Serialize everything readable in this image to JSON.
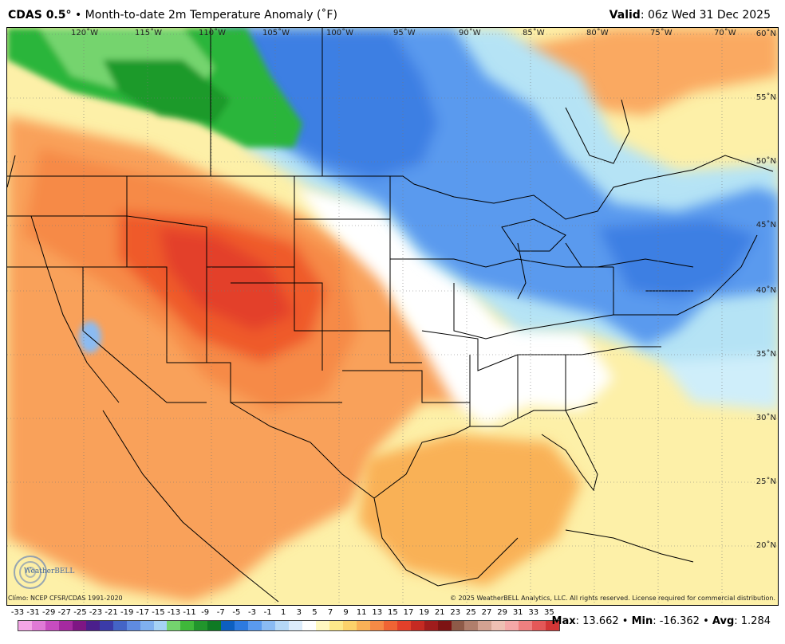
{
  "header": {
    "model": "CDAS 0.5",
    "degree": "°",
    "bullet": "•",
    "product": "Month-to-date 2m Temperature Anomaly (˚F)",
    "valid_label": "Valid",
    "valid_value": ": 06z Wed 31 Dec 2025"
  },
  "map": {
    "lon_labels": [
      "120˚W",
      "115˚W",
      "110˚W",
      "105˚W",
      "100˚W",
      "95˚W",
      "90˚W",
      "85˚W",
      "80˚W",
      "75˚W",
      "70˚W"
    ],
    "lat_labels": [
      "60˚N",
      "55˚N",
      "50˚N",
      "45˚N",
      "40˚N",
      "35˚N",
      "30˚N",
      "25˚N",
      "20˚N"
    ]
  },
  "footer": {
    "climo": "Clímo: NCEP CFSR/CDAS 1991-2020",
    "copyright": "© 2025 WeatherBELL Analytics, LLC. All rights reserved. License required for commercial distribution.",
    "logo": "WeatherBELL"
  },
  "colorbar": {
    "labels": [
      "-33",
      "-31",
      "-29",
      "-27",
      "-25",
      "-23",
      "-21",
      "-19",
      "-17",
      "-15",
      "-13",
      "-11",
      "-9",
      "-7",
      "-5",
      "-3",
      "-1",
      "1",
      "3",
      "5",
      "7",
      "9",
      "11",
      "13",
      "15",
      "17",
      "19",
      "21",
      "23",
      "25",
      "27",
      "29",
      "31",
      "33",
      "35"
    ],
    "colors": [
      "#f3a6e6",
      "#e07ad6",
      "#c74cbf",
      "#a52aa0",
      "#7e1684",
      "#4b1f8c",
      "#3b3ba8",
      "#4464c6",
      "#5f8be0",
      "#7fb0ef",
      "#a5d2f5",
      "#74d46e",
      "#3fb83a",
      "#21952c",
      "#0f7a24",
      "#0d5fc0",
      "#2d7ae0",
      "#5a9aee",
      "#8abbf3",
      "#b5d8f7",
      "#dcecfb",
      "#ffffff",
      "#fff8c0",
      "#fde98a",
      "#fcd26a",
      "#f9b157",
      "#f68a46",
      "#f06434",
      "#e3402a",
      "#c52a22",
      "#a01c1c",
      "#7d1313",
      "#8e5a48",
      "#b07e6c",
      "#d3a292",
      "#eec0b4",
      "#f4a8a8",
      "#ee8080",
      "#e45858",
      "#d33636"
    ]
  },
  "stats": {
    "max_label": "Max",
    "max_value": ": 13.662",
    "sep1": " • ",
    "min_label": "Min",
    "min_value": ": -16.362",
    "sep2": " • ",
    "avg_label": "Avg",
    "avg_value": ": 1.284"
  },
  "colors": {
    "warm_strong": "#f05a2a",
    "warm": "#f9a15a",
    "mild": "#fde98a",
    "neutral": "#ffffff",
    "cool": "#b5e3f5",
    "cold": "#3c7fe3",
    "green": "#2bb53a",
    "border": "#000000"
  }
}
